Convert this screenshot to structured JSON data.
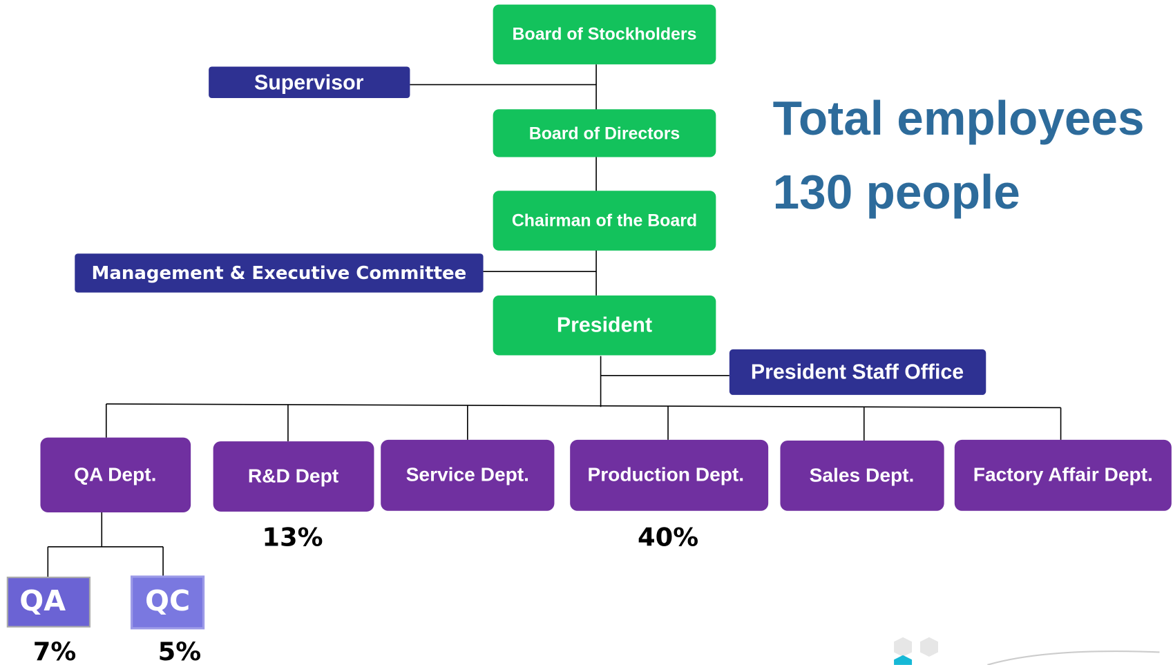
{
  "headline": {
    "line1": "Total employees",
    "line2": "130 people"
  },
  "nodes": [
    {
      "label": "Board of Stockholders"
    },
    {
      "label": "Supervisor"
    },
    {
      "label": "Board of Directors"
    },
    {
      "label": "Chairman of the Board"
    },
    {
      "label": "Management & Executive Committee"
    },
    {
      "label": "President"
    },
    {
      "label": "President Staff Office"
    }
  ],
  "departments": [
    {
      "label": "QA Dept."
    },
    {
      "label": "R&D Dept",
      "share": "13%"
    },
    {
      "label": "Service Dept."
    },
    {
      "label": "Production Dept.",
      "share": "40%"
    },
    {
      "label": "Sales Dept."
    },
    {
      "label": "Factory Affair Dept."
    }
  ],
  "qa_units": [
    {
      "label": "QA",
      "share": "7%"
    },
    {
      "label": "QC",
      "share": "5%"
    }
  ]
}
